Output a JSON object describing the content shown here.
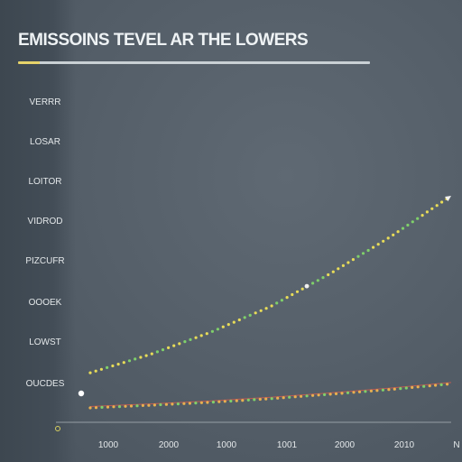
{
  "chart_data": {
    "type": "line",
    "title": "EMISSOINS TEVEL AR THE LOWERS",
    "ylabel": "",
    "categories": [
      "VERRR",
      "LOSAR",
      "LOITOR",
      "VIDROD",
      "PIZCUFR",
      "OOOEK",
      "LOWST",
      "OUCDES"
    ],
    "xticks": [
      "1000",
      "2000",
      "1000",
      "1001",
      "2000",
      "2010",
      "N"
    ],
    "grid": false,
    "legend": "none",
    "series": [
      {
        "color": "#e8dc58",
        "x": [
          0,
          1,
          2,
          3,
          4,
          5,
          6
        ],
        "y": [
          1.0,
          1.5,
          2.1,
          2.8,
          3.7,
          4.7,
          5.8
        ]
      },
      {
        "color": "#e8b050",
        "x": [
          0,
          1,
          2,
          3,
          4,
          5,
          6
        ],
        "y": [
          0.05,
          0.12,
          0.2,
          0.3,
          0.42,
          0.55,
          0.7
        ]
      }
    ],
    "trend_color": "#d05a4e",
    "ylim": [
      0,
      7
    ],
    "xlim": [
      0,
      6
    ]
  }
}
